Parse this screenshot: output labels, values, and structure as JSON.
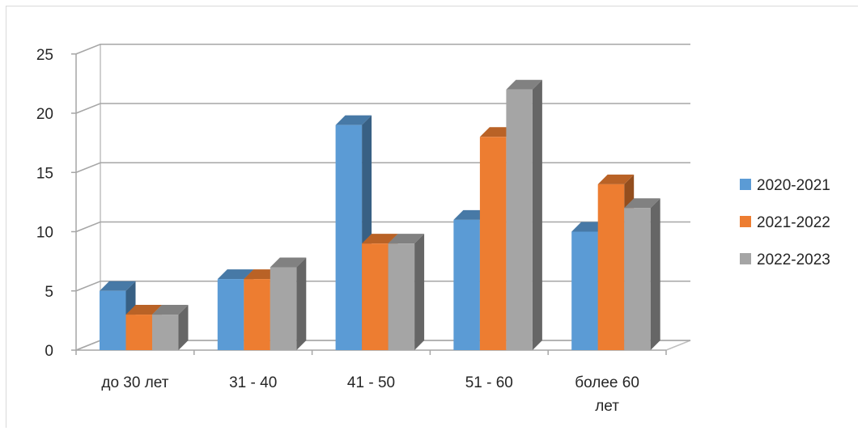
{
  "chart_data": {
    "type": "bar",
    "title": "",
    "xlabel": "",
    "ylabel": "",
    "categories": [
      [
        "до 30 лет"
      ],
      [
        "31 - 40"
      ],
      [
        "41 - 50"
      ],
      [
        "51 - 60"
      ],
      [
        "более 60",
        "лет"
      ]
    ],
    "series": [
      {
        "name": "2020-2021",
        "color": "#5b9bd5",
        "values": [
          5,
          6,
          19,
          11,
          10
        ]
      },
      {
        "name": "2021-2022",
        "color": "#ed7d31",
        "values": [
          3,
          6,
          9,
          18,
          14
        ]
      },
      {
        "name": "2022-2023",
        "color": "#a5a5a5",
        "values": [
          3,
          7,
          9,
          22,
          12
        ]
      }
    ],
    "ylim": [
      0,
      25
    ],
    "yticks": [
      0,
      5,
      10,
      15,
      20,
      25
    ],
    "grid": true,
    "legend": "right",
    "style": "3d-clustered-column"
  }
}
